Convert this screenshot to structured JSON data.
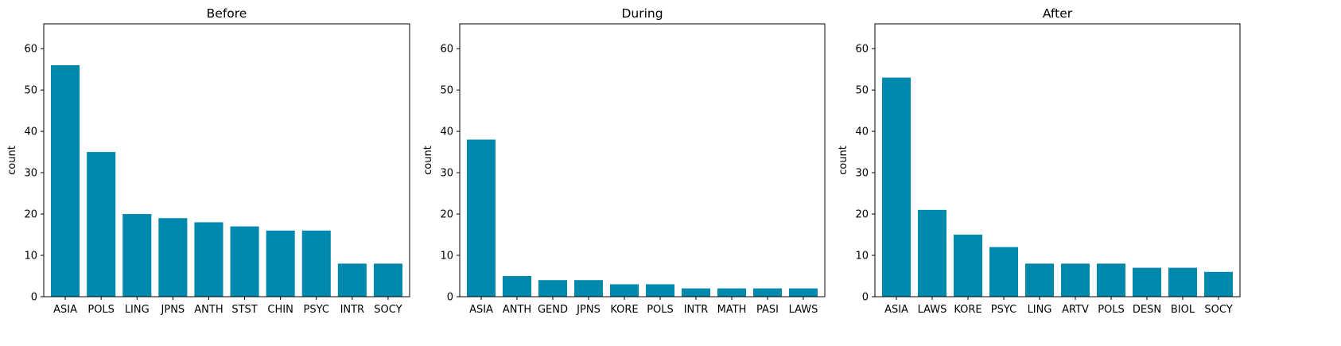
{
  "bar_color": "#0088ad",
  "chart_data": [
    {
      "type": "bar",
      "title": "Before",
      "ylabel": "count",
      "xlabel": "",
      "ylim": [
        0,
        66
      ],
      "yticks": [
        0,
        10,
        20,
        30,
        40,
        50,
        60
      ],
      "categories": [
        "ASIA",
        "POLS",
        "LING",
        "JPNS",
        "ANTH",
        "STST",
        "CHIN",
        "PSYC",
        "INTR",
        "SOCY"
      ],
      "values": [
        56,
        35,
        20,
        19,
        18,
        17,
        16,
        16,
        8,
        8
      ],
      "grid": false
    },
    {
      "type": "bar",
      "title": "During",
      "ylabel": "count",
      "xlabel": "",
      "ylim": [
        0,
        66
      ],
      "yticks": [
        0,
        10,
        20,
        30,
        40,
        50,
        60
      ],
      "categories": [
        "ASIA",
        "ANTH",
        "GEND",
        "JPNS",
        "KORE",
        "POLS",
        "INTR",
        "MATH",
        "PASI",
        "LAWS"
      ],
      "values": [
        38,
        5,
        4,
        4,
        3,
        3,
        2,
        2,
        2,
        2
      ],
      "grid": false
    },
    {
      "type": "bar",
      "title": "After",
      "ylabel": "count",
      "xlabel": "",
      "ylim": [
        0,
        66
      ],
      "yticks": [
        0,
        10,
        20,
        30,
        40,
        50,
        60
      ],
      "categories": [
        "ASIA",
        "LAWS",
        "KORE",
        "PSYC",
        "LING",
        "ARTV",
        "POLS",
        "DESN",
        "BIOL",
        "SOCY"
      ],
      "values": [
        53,
        21,
        15,
        12,
        8,
        8,
        8,
        7,
        7,
        6
      ],
      "grid": false
    }
  ]
}
